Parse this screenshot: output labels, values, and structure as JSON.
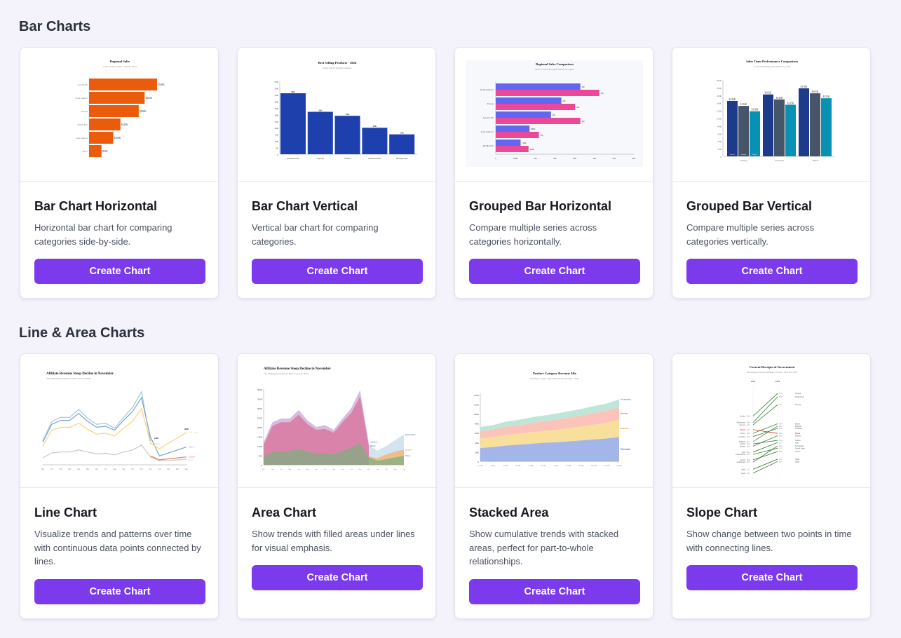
{
  "sections": [
    {
      "heading": "Bar Charts",
      "cards": [
        {
          "title": "Bar Chart Horizontal",
          "description": "Horizontal bar chart for comparing categories side-by-side.",
          "button": "Create Chart"
        },
        {
          "title": "Bar Chart Vertical",
          "description": "Vertical bar chart for comparing categories.",
          "button": "Create Chart"
        },
        {
          "title": "Grouped Bar Horizontal",
          "description": "Compare multiple series across categories horizontally.",
          "button": "Create Chart"
        },
        {
          "title": "Grouped Bar Vertical",
          "description": "Compare multiple series across categories vertically.",
          "button": "Create Chart"
        }
      ]
    },
    {
      "heading": "Line & Area Charts",
      "cards": [
        {
          "title": "Line Chart",
          "description": "Visualize trends and patterns over time with continuous data points connected by lines.",
          "button": "Create Chart"
        },
        {
          "title": "Area Chart",
          "description": "Show trends with filled areas under lines for visual emphasis.",
          "button": "Create Chart"
        },
        {
          "title": "Stacked Area",
          "description": "Show cumulative trends with stacked areas, perfect for part-to-whole relationships.",
          "button": "Create Chart"
        },
        {
          "title": "Slope Chart",
          "description": "Show change between two points in time with connecting lines.",
          "button": "Create Chart"
        }
      ]
    }
  ],
  "colors": {
    "accent": "#7c3aed",
    "orange": "#ea5b0c",
    "blue": "#1e40af",
    "indigo": "#6366f1",
    "pink": "#ec4899",
    "navy": "#1e3a8a",
    "slate": "#475569",
    "teal": "#0891b2"
  },
  "chart_data": [
    {
      "type": "bar",
      "orientation": "horizontal",
      "title": "Regional Sales",
      "subtitle": "Units sold by region - January 2024",
      "categories": [
        "Asia Pacific",
        "North America",
        "Europe",
        "Middle East",
        "Latin America",
        "Africa"
      ],
      "values": [
        520,
        425,
        380,
        240,
        185,
        95
      ],
      "labels": [
        "$520K",
        "$425K",
        "$380K",
        "$240K",
        "$185K",
        "$95K"
      ],
      "xlim": [
        0,
        520
      ]
    },
    {
      "type": "bar",
      "orientation": "vertical",
      "title": "Best Selling Products - 2024",
      "subtitle": "Units sold by product category",
      "categories": [
        "Smartphones",
        "Laptops",
        "Tablets",
        "Smartwatches",
        "Headphones"
      ],
      "values": [
        46,
        32,
        29,
        20,
        15
      ],
      "labels": [
        "46K",
        "32K",
        "29K",
        "20K",
        "15K"
      ],
      "yticks": [
        "0",
        "5K",
        "10K",
        "15K",
        "20K",
        "25K",
        "30K",
        "35K",
        "40K",
        "45K",
        "50K",
        "55K"
      ],
      "ylim": [
        0,
        55
      ]
    },
    {
      "type": "bar",
      "orientation": "horizontal-grouped",
      "title": "Regional Sales Comparison",
      "subtitle": "2023 vs 2024 sales performance by region",
      "categories": [
        "North America",
        "Europe",
        "Asia Pacific",
        "Latin America",
        "Middle East"
      ],
      "series": [
        {
          "name": "2023",
          "values": [
            2.45,
            1.9,
            1.6,
            0.98,
            0.72
          ],
          "labels": [
            "2M",
            "2M",
            "2M",
            "980K",
            "720K"
          ]
        },
        {
          "name": "2024",
          "values": [
            3.0,
            2.3,
            2.45,
            1.25,
            0.95
          ],
          "labels": [
            "3M",
            "2M",
            "2M",
            "1M",
            "950K"
          ]
        }
      ],
      "xticks": [
        "0",
        "500K",
        "1M",
        "2M",
        "2M",
        "3M",
        "3M",
        "4M"
      ],
      "xlim": [
        0,
        4
      ]
    },
    {
      "type": "bar",
      "orientation": "vertical-grouped",
      "title": "Sales Team Performance Comparison",
      "subtitle": "Q1 2024 monthly performance by team",
      "categories": [
        "January",
        "February",
        "March"
      ],
      "series": [
        {
          "name": "Team A",
          "values": [
            145,
            162,
            178
          ]
        },
        {
          "name": "Team B",
          "values": [
            132,
            149,
            165
          ]
        },
        {
          "name": "Team C",
          "values": [
            118,
            135,
            152
          ]
        }
      ],
      "yticks": [
        "0",
        "20K",
        "40K",
        "60K",
        "80K",
        "100K",
        "120K",
        "140K",
        "160K",
        "180K",
        "200K"
      ],
      "ylim": [
        0,
        200
      ]
    },
    {
      "type": "line",
      "title": "Affiliate Revenue Steep Decline in November",
      "subtitle": "Top Marketing Channel in 2023 to Zero in 2024",
      "x": [
        "Dec",
        "Jan",
        "Feb",
        "Mar",
        "Apr",
        "May",
        "Jun",
        "Jul",
        "Aug",
        "Sep",
        "Oct",
        "Nov",
        "Dec",
        "Jan",
        "Feb",
        "Mar",
        "Apr"
      ],
      "series": [
        {
          "name": "Affiliate",
          "values": [
            120,
            220,
            240,
            240,
            280,
            235,
            205,
            210,
            185,
            240,
            290,
            370,
            120,
            null,
            null,
            null,
            null
          ]
        },
        {
          "name": "Direct",
          "values": [
            115,
            205,
            225,
            225,
            260,
            220,
            190,
            195,
            175,
            225,
            270,
            340,
            140,
            45,
            60,
            75,
            90
          ]
        },
        {
          "name": "Paid Search",
          "values": [
            95,
            175,
            190,
            190,
            210,
            180,
            155,
            160,
            145,
            185,
            220,
            285,
            110,
            80,
            110,
            135,
            165
          ]
        },
        {
          "name": "Display",
          "values": [
            null,
            null,
            null,
            null,
            null,
            null,
            null,
            null,
            null,
            null,
            null,
            null,
            45,
            25,
            30,
            35,
            40
          ]
        },
        {
          "name": "Email",
          "values": [
            35,
            60,
            65,
            65,
            75,
            65,
            55,
            58,
            50,
            65,
            75,
            100,
            40,
            20,
            22,
            25,
            28
          ]
        }
      ],
      "annotations": [
        "146K",
        "160K"
      ],
      "ylim": [
        0,
        400
      ]
    },
    {
      "type": "area",
      "title": "Affiliate Revenue Steep Decline in November",
      "subtitle": "Top Marketing Channel in 2023 to Zero in 2024",
      "x": [
        "Dec",
        "Jan",
        "Feb",
        "Mar",
        "Apr",
        "May",
        "Jun",
        "Jul",
        "Aug",
        "Sep",
        "Oct",
        "Nov",
        "Dec",
        "Jan",
        "Feb",
        "Mar",
        "Apr"
      ],
      "series": [
        {
          "name": "Affiliate",
          "values": [
            120,
            225,
            245,
            245,
            290,
            235,
            200,
            210,
            185,
            245,
            300,
            395,
            110,
            null,
            null,
            null,
            null
          ]
        },
        {
          "name": "Direct",
          "values": [
            105,
            205,
            225,
            225,
            265,
            215,
            185,
            190,
            170,
            225,
            275,
            360,
            100,
            null,
            null,
            null,
            null
          ]
        },
        {
          "name": "Paid Search",
          "values": [
            null,
            null,
            null,
            null,
            null,
            null,
            null,
            null,
            null,
            null,
            null,
            null,
            105,
            75,
            100,
            130,
            160
          ]
        },
        {
          "name": "Display",
          "values": [
            null,
            null,
            null,
            null,
            null,
            null,
            null,
            null,
            null,
            null,
            null,
            null,
            45,
            35,
            55,
            70,
            80
          ]
        },
        {
          "name": "Email",
          "values": [
            40,
            70,
            72,
            72,
            85,
            70,
            60,
            62,
            55,
            75,
            90,
            115,
            40,
            22,
            30,
            40,
            48
          ]
        }
      ],
      "yticks": [
        "0",
        "50K",
        "100K",
        "150K",
        "200K",
        "250K",
        "300K",
        "350K",
        "400K"
      ],
      "ylim": [
        0,
        400
      ]
    },
    {
      "type": "area",
      "stacked": true,
      "title": "Product Category Revenue Mix",
      "subtitle": "Monthly revenue composition by product line - 2024",
      "x": [
        "1/1/24",
        "2/1/24",
        "3/1/24",
        "4/1/24",
        "5/1/24",
        "6/1/24",
        "7/1/24",
        "8/1/24",
        "9/1/24",
        "10/1/24",
        "11/1/24",
        "12/1/24"
      ],
      "series": [
        {
          "name": "Electronics",
          "values": [
            28,
            30,
            33,
            35,
            37,
            39,
            40,
            42,
            44,
            46,
            48,
            51
          ]
        },
        {
          "name": "Software",
          "values": [
            20,
            21,
            22,
            23,
            24,
            25,
            26,
            28,
            29,
            31,
            33,
            36
          ]
        },
        {
          "name": "Services",
          "values": [
            15,
            16,
            17,
            18,
            19,
            20,
            21,
            22,
            23,
            24,
            25,
            27
          ]
        },
        {
          "name": "Accessories",
          "values": [
            9,
            9,
            11,
            11,
            12,
            12,
            13,
            13,
            14,
            15,
            15,
            16
          ]
        }
      ],
      "yticks": [
        "0",
        "20K",
        "40K",
        "60K",
        "80K",
        "100K",
        "120K",
        "140K"
      ],
      "ylim": [
        0,
        140
      ]
    },
    {
      "type": "slope",
      "title": "Current Receipts of Government",
      "subtitle": "Percentage of Gross Domestic Product, 1970 and 1979",
      "columns": [
        "1970",
        "1979"
      ],
      "series": [
        {
          "name": "Sweden",
          "values": [
            46.9,
            57.4
          ]
        },
        {
          "name": "Netherlands",
          "values": [
            44.0,
            55.8
          ]
        },
        {
          "name": "Norway",
          "values": [
            43.5,
            52.2
          ]
        },
        {
          "name": "Britain",
          "values": [
            40.7,
            39.0
          ]
        },
        {
          "name": "France",
          "values": [
            39.0,
            43.4
          ]
        },
        {
          "name": "Germany",
          "values": [
            37.5,
            42.9
          ]
        },
        {
          "name": "Belgium",
          "values": [
            35.2,
            43.2
          ]
        },
        {
          "name": "Canada",
          "values": [
            35.2,
            35.8
          ]
        },
        {
          "name": "Finland",
          "values": [
            34.9,
            38.2
          ]
        },
        {
          "name": "Italy",
          "values": [
            30.4,
            35.7
          ]
        },
        {
          "name": "United States",
          "values": [
            30.3,
            32.5
          ]
        },
        {
          "name": "Greece",
          "values": [
            26.8,
            30.6
          ]
        },
        {
          "name": "Switzerland",
          "values": [
            26.5,
            33.2
          ]
        },
        {
          "name": "Spain",
          "values": [
            22.5,
            27.1
          ]
        },
        {
          "name": "Japan",
          "values": [
            20.7,
            26.6
          ]
        }
      ],
      "highlight": "Britain"
    }
  ]
}
